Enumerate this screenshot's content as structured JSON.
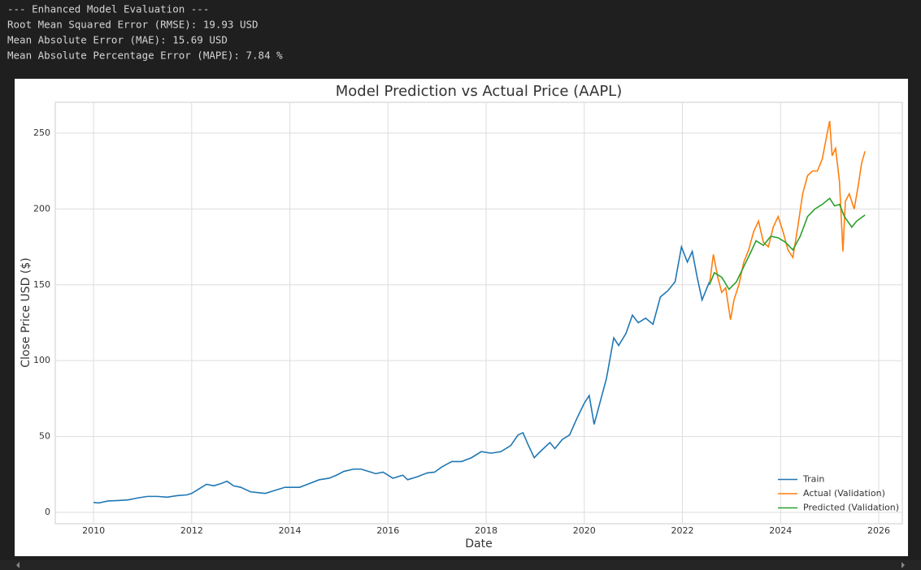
{
  "output": {
    "lines": [
      "--- Enhanced Model Evaluation ---",
      "Root Mean Squared Error (RMSE): 19.93 USD",
      "Mean Absolute Error (MAE): 15.69 USD",
      "Mean Absolute Percentage Error (MAPE): 7.84 %"
    ]
  },
  "chart_data": {
    "type": "line",
    "title": "Model Prediction vs Actual Price (AAPL)",
    "x_label": "Date",
    "y_label": "Close Price USD ($)",
    "xlim": [
      2009.22,
      2026.48
    ],
    "ylim": [
      -7.5,
      270.3
    ],
    "xticks": [
      2010,
      2012,
      2014,
      2016,
      2018,
      2020,
      2022,
      2024,
      2026
    ],
    "yticks": [
      0,
      50,
      100,
      150,
      200,
      250
    ],
    "grid": true,
    "legend": "lower right",
    "series": [
      {
        "name": "Train",
        "color": "#1f77b4",
        "x": [
          2010.0,
          2010.1,
          2010.3,
          2010.5,
          2010.7,
          2010.9,
          2011.1,
          2011.3,
          2011.5,
          2011.7,
          2011.9,
          2012.0,
          2012.15,
          2012.3,
          2012.45,
          2012.6,
          2012.72,
          2012.85,
          2013.0,
          2013.2,
          2013.35,
          2013.5,
          2013.7,
          2013.9,
          2014.0,
          2014.2,
          2014.4,
          2014.6,
          2014.8,
          2014.95,
          2015.1,
          2015.3,
          2015.45,
          2015.6,
          2015.75,
          2015.9,
          2016.1,
          2016.3,
          2016.4,
          2016.6,
          2016.8,
          2016.95,
          2017.1,
          2017.3,
          2017.5,
          2017.7,
          2017.9,
          2018.1,
          2018.3,
          2018.5,
          2018.65,
          2018.75,
          2018.85,
          2018.98,
          2019.1,
          2019.3,
          2019.4,
          2019.55,
          2019.7,
          2019.85,
          2020.0,
          2020.1,
          2020.2,
          2020.3,
          2020.45,
          2020.6,
          2020.7,
          2020.85,
          2020.98,
          2021.1,
          2021.25,
          2021.4,
          2021.55,
          2021.7,
          2021.85,
          2021.98,
          2022.1,
          2022.2,
          2022.3,
          2022.4,
          2022.5,
          2022.55
        ],
        "values": [
          6.5,
          6.2,
          7.5,
          7.8,
          8.2,
          9.5,
          10.5,
          10.5,
          10.0,
          11.0,
          11.5,
          12.5,
          15.5,
          18.5,
          17.5,
          19.0,
          20.5,
          17.5,
          16.5,
          13.5,
          13.0,
          12.5,
          14.5,
          16.5,
          16.5,
          16.5,
          19.0,
          21.5,
          22.5,
          24.5,
          27,
          28.5,
          28.5,
          27,
          25.5,
          26.5,
          22.5,
          24.5,
          21.5,
          23.5,
          26,
          26.5,
          30,
          33.5,
          33.5,
          36,
          40,
          39,
          40,
          44,
          51,
          52.5,
          45,
          36,
          40,
          46,
          42,
          48,
          51,
          62,
          72,
          77,
          58,
          70,
          88,
          115,
          110,
          118,
          130,
          125,
          128,
          124,
          142,
          146,
          152,
          175,
          165,
          172,
          155,
          140,
          148,
          152
        ]
      },
      {
        "name": "Actual (Validation)",
        "color": "#ff7f0e",
        "x": [
          2022.55,
          2022.63,
          2022.72,
          2022.8,
          2022.88,
          2022.98,
          2023.05,
          2023.15,
          2023.25,
          2023.35,
          2023.45,
          2023.55,
          2023.65,
          2023.75,
          2023.85,
          2023.95,
          2024.05,
          2024.15,
          2024.25,
          2024.35,
          2024.45,
          2024.55,
          2024.65,
          2024.75,
          2024.85,
          2024.95,
          2025.0,
          2025.05,
          2025.12,
          2025.2,
          2025.27,
          2025.32,
          2025.4,
          2025.5,
          2025.58,
          2025.65,
          2025.72
        ],
        "values": [
          150,
          170,
          155,
          145,
          148,
          127,
          140,
          150,
          165,
          173,
          185,
          192,
          178,
          175,
          188,
          195,
          185,
          173,
          168,
          188,
          210,
          222,
          225,
          225,
          233,
          250,
          258,
          235,
          240,
          218,
          172,
          205,
          210,
          200,
          215,
          230,
          238
        ]
      },
      {
        "name": "Predicted (Validation)",
        "color": "#2ca02c",
        "x": [
          2022.55,
          2022.65,
          2022.8,
          2022.95,
          2023.1,
          2023.25,
          2023.4,
          2023.5,
          2023.65,
          2023.8,
          2023.95,
          2024.1,
          2024.25,
          2024.4,
          2024.55,
          2024.7,
          2024.85,
          2025.0,
          2025.1,
          2025.2,
          2025.3,
          2025.45,
          2025.55,
          2025.72
        ],
        "values": [
          150,
          158,
          155,
          147,
          152,
          162,
          172,
          179,
          176,
          182,
          181,
          178,
          173,
          182,
          195,
          200,
          203,
          207,
          202,
          203,
          195,
          188,
          192,
          196
        ]
      }
    ]
  }
}
